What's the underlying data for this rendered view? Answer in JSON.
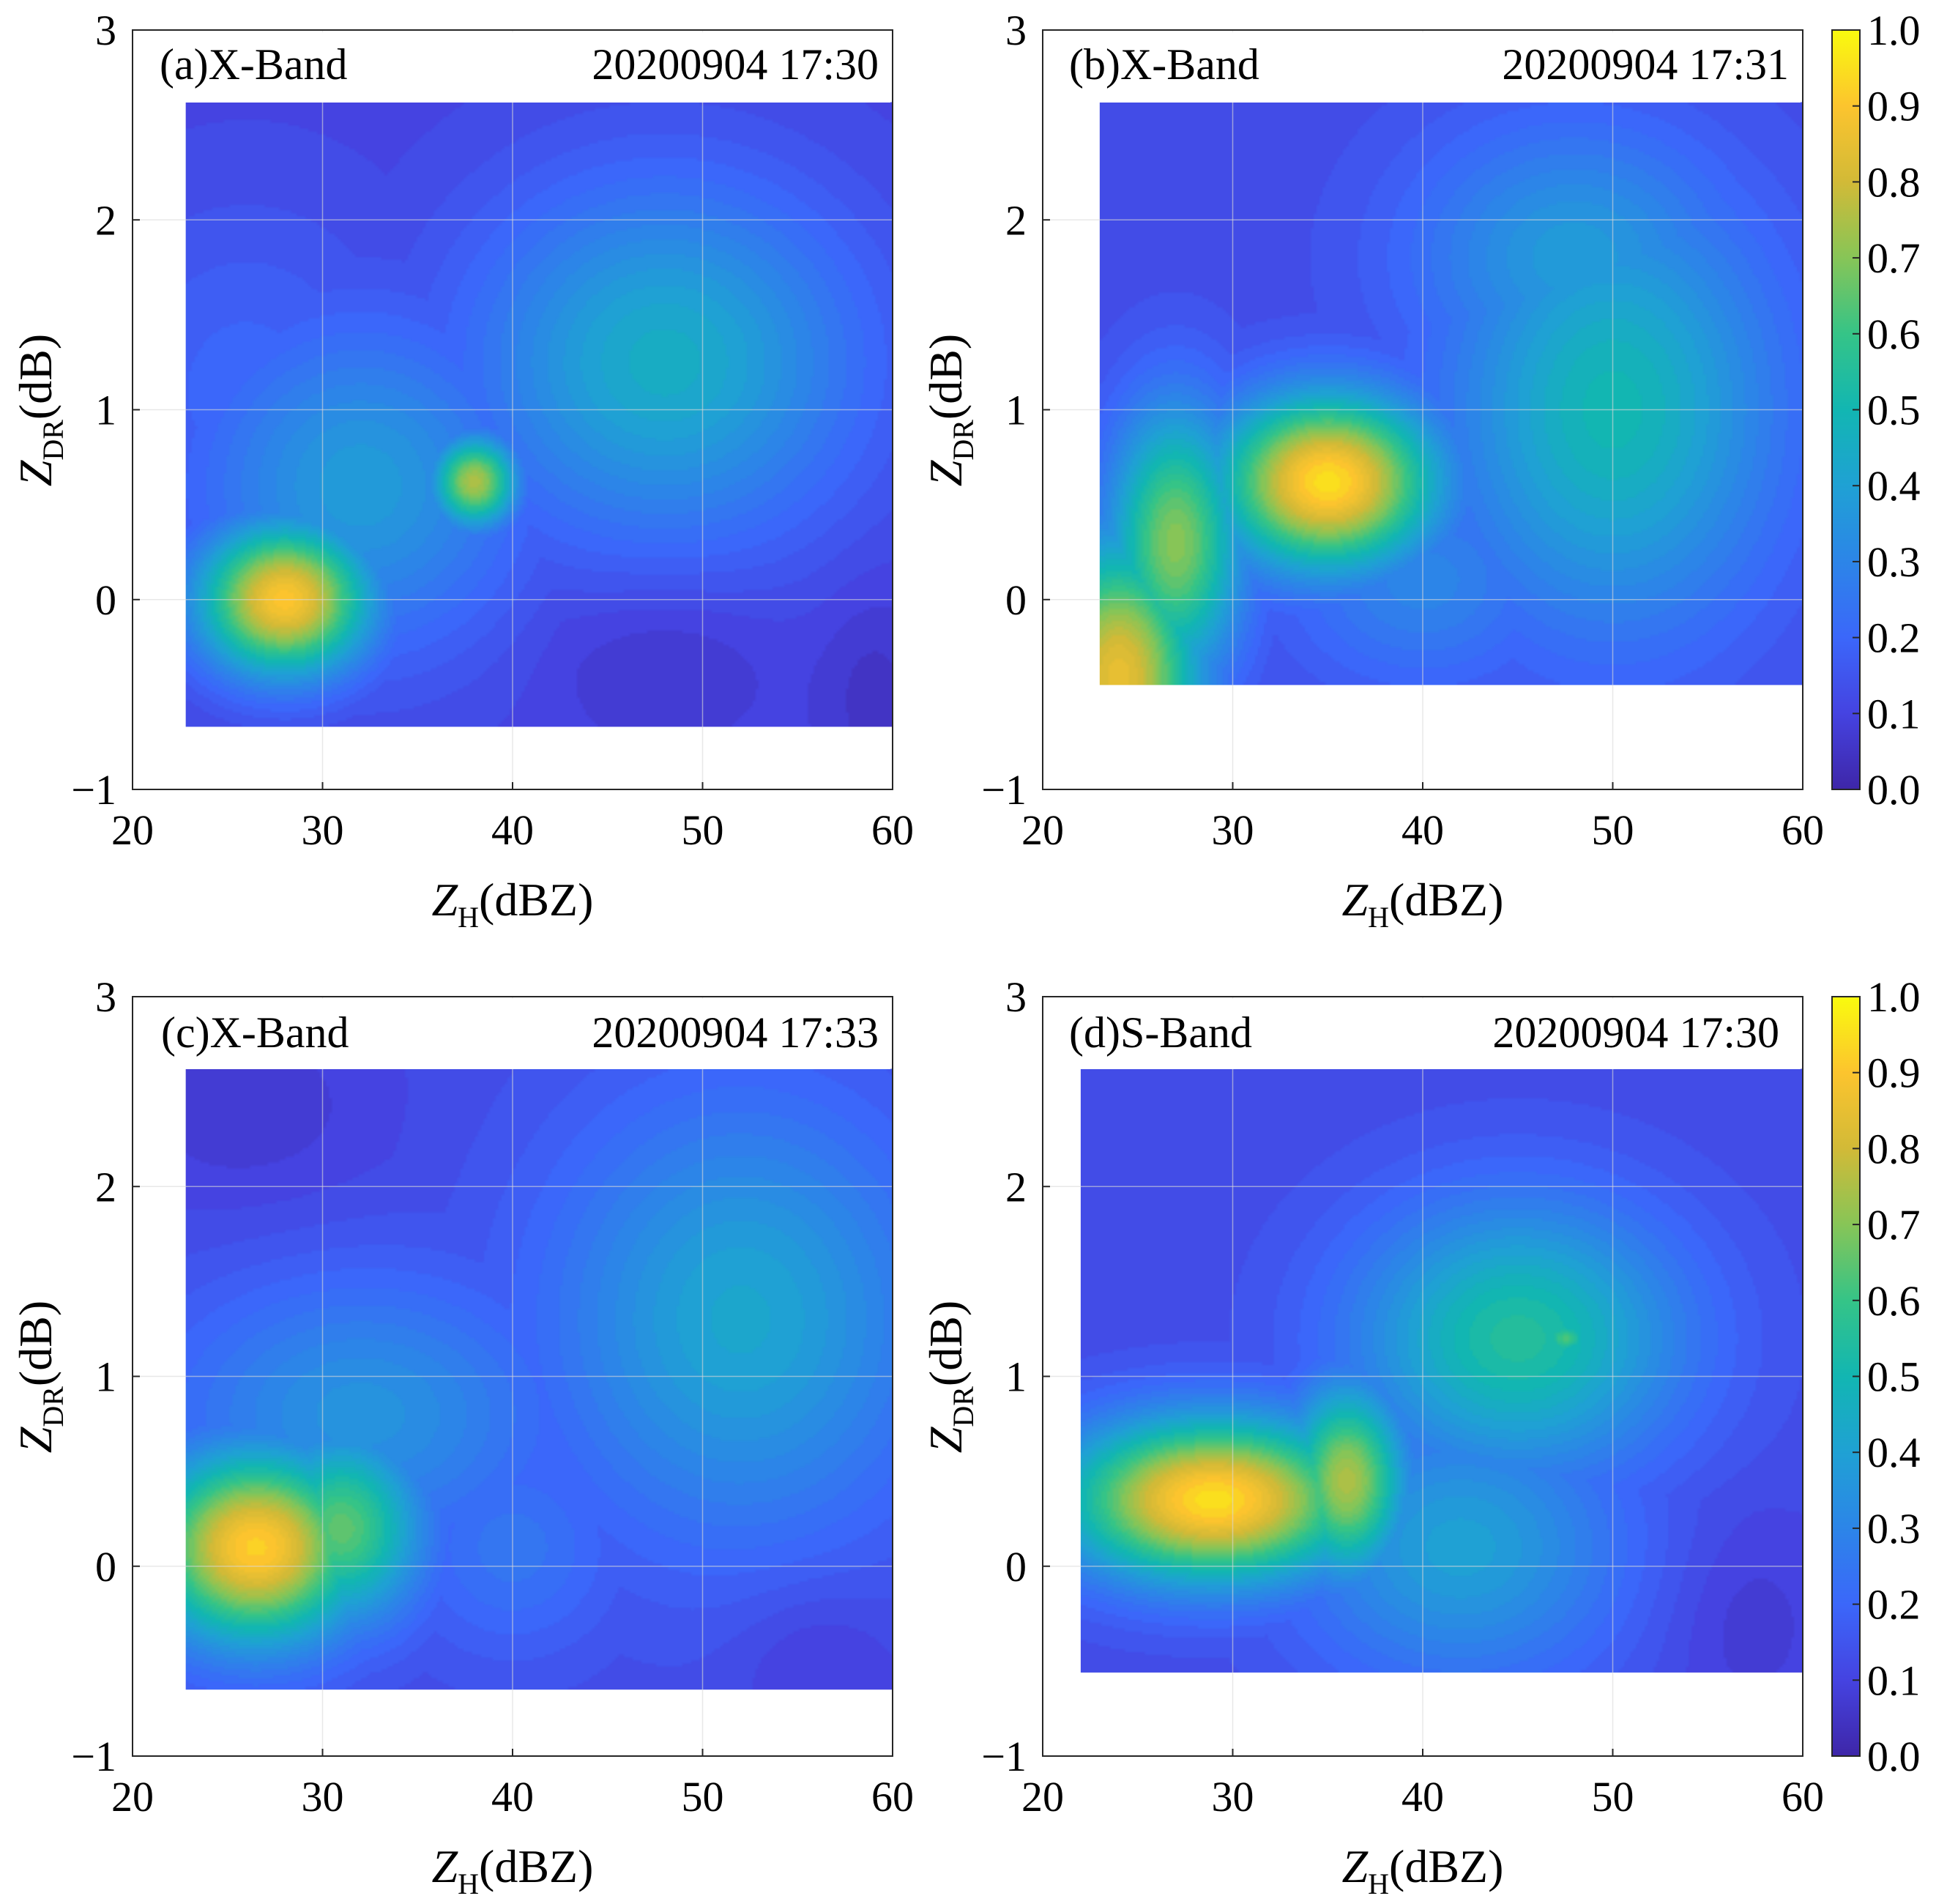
{
  "figure": {
    "colorbar_ticks": [
      "0.0",
      "0.1",
      "0.2",
      "0.3",
      "0.4",
      "0.5",
      "0.6",
      "0.7",
      "0.8",
      "0.9",
      "1.0"
    ]
  },
  "chart_data": [
    {
      "type": "heatmap",
      "panel_label": "(a)X-Band",
      "timestamp": "20200904 17:30",
      "xlabel_main": "Z",
      "xlabel_sub": "H",
      "xlabel_unit": "(dBZ)",
      "ylabel_main": "Z",
      "ylabel_sub": "DR",
      "ylabel_unit": "(dB)",
      "xlim": [
        20,
        60
      ],
      "ylim": [
        -1,
        3
      ],
      "xticks": [
        20,
        30,
        40,
        50,
        60
      ],
      "yticks": [
        -1,
        0,
        1,
        2,
        3
      ],
      "grid": true,
      "colormap": "parula",
      "clim": [
        0,
        1
      ],
      "data_extent": {
        "x": [
          22.8,
          60
        ],
        "y": [
          -0.67,
          2.62
        ]
      },
      "background": 0.1,
      "peaks": [
        {
          "x": 28,
          "y": 0.0,
          "value": 0.9,
          "sx": 3.2,
          "sy": 0.28
        },
        {
          "x": 38,
          "y": 0.62,
          "value": 0.75,
          "sx": 1.6,
          "sy": 0.17
        },
        {
          "x": 48,
          "y": 1.25,
          "value": 0.45,
          "sx": 7,
          "sy": 0.65
        },
        {
          "x": 32,
          "y": 0.6,
          "value": 0.38,
          "sx": 6,
          "sy": 0.6
        },
        {
          "x": 26,
          "y": 1.1,
          "value": 0.2,
          "sx": 6,
          "sy": 0.7
        },
        {
          "x": 48,
          "y": -0.3,
          "value": -0.05,
          "sx": 4,
          "sy": 0.3
        },
        {
          "x": 59,
          "y": -0.5,
          "value": -0.05,
          "sx": 2,
          "sy": 0.4
        }
      ]
    },
    {
      "type": "heatmap",
      "panel_label": "(b)X-Band",
      "timestamp": "20200904 17:31",
      "xlabel_main": "Z",
      "xlabel_sub": "H",
      "xlabel_unit": "(dBZ)",
      "ylabel_main": "Z",
      "ylabel_sub": "DR",
      "ylabel_unit": "(dB)",
      "xlim": [
        20,
        60
      ],
      "ylim": [
        -1,
        3
      ],
      "xticks": [
        20,
        30,
        40,
        50,
        60
      ],
      "yticks": [
        -1,
        0,
        1,
        2,
        3
      ],
      "grid": true,
      "colormap": "parula",
      "clim": [
        0,
        1
      ],
      "data_extent": {
        "x": [
          23,
          60
        ],
        "y": [
          -0.45,
          2.62
        ]
      },
      "background": 0.12,
      "peaks": [
        {
          "x": 35,
          "y": 0.62,
          "value": 0.95,
          "sx": 4,
          "sy": 0.32
        },
        {
          "x": 24,
          "y": -0.4,
          "value": 0.85,
          "sx": 3,
          "sy": 0.5
        },
        {
          "x": 27,
          "y": 0.3,
          "value": 0.7,
          "sx": 2.5,
          "sy": 0.5
        },
        {
          "x": 50,
          "y": 1.0,
          "value": 0.5,
          "sx": 6,
          "sy": 0.8
        },
        {
          "x": 48,
          "y": 1.8,
          "value": 0.38,
          "sx": 6,
          "sy": 0.5
        },
        {
          "x": 40,
          "y": 0.1,
          "value": 0.3,
          "sx": 5,
          "sy": 0.4
        },
        {
          "x": 48,
          "y": -0.2,
          "value": 0.08,
          "sx": 4,
          "sy": 0.2
        }
      ]
    },
    {
      "type": "heatmap",
      "panel_label": "(c)X-Band",
      "timestamp": "20200904 17:33",
      "xlabel_main": "Z",
      "xlabel_sub": "H",
      "xlabel_unit": "(dBZ)",
      "ylabel_main": "Z",
      "ylabel_sub": "DR",
      "ylabel_unit": "(dB)",
      "xlim": [
        20,
        60
      ],
      "ylim": [
        -1,
        3
      ],
      "xticks": [
        20,
        30,
        40,
        50,
        60
      ],
      "yticks": [
        -1,
        0,
        1,
        2,
        3
      ],
      "grid": true,
      "colormap": "parula",
      "clim": [
        0,
        1
      ],
      "data_extent": {
        "x": [
          22.8,
          60
        ],
        "y": [
          -0.65,
          2.62
        ]
      },
      "background": 0.12,
      "peaks": [
        {
          "x": 26.5,
          "y": 0.1,
          "value": 0.92,
          "sx": 4,
          "sy": 0.35
        },
        {
          "x": 31,
          "y": 0.2,
          "value": 0.65,
          "sx": 3,
          "sy": 0.35
        },
        {
          "x": 52,
          "y": 1.3,
          "value": 0.42,
          "sx": 7,
          "sy": 0.8
        },
        {
          "x": 32,
          "y": 0.8,
          "value": 0.35,
          "sx": 7,
          "sy": 0.5
        },
        {
          "x": 40,
          "y": 0.1,
          "value": 0.25,
          "sx": 4,
          "sy": 0.4
        },
        {
          "x": 26,
          "y": 2.4,
          "value": -0.05,
          "sx": 5,
          "sy": 0.4
        },
        {
          "x": 56,
          "y": -0.5,
          "value": -0.05,
          "sx": 3,
          "sy": 0.3
        }
      ]
    },
    {
      "type": "heatmap",
      "panel_label": "(d)S-Band",
      "timestamp": "20200904 17:30",
      "xlabel_main": "Z",
      "xlabel_sub": "H",
      "xlabel_unit": "(dBZ)",
      "ylabel_main": "Z",
      "ylabel_sub": "DR",
      "ylabel_unit": "(dB)",
      "xlim": [
        20,
        60
      ],
      "ylim": [
        -1,
        3
      ],
      "xticks": [
        20,
        30,
        40,
        50,
        60
      ],
      "yticks": [
        -1,
        0,
        1,
        2,
        3
      ],
      "grid": true,
      "colormap": "parula",
      "clim": [
        0,
        1
      ],
      "data_extent": {
        "x": [
          22,
          60
        ],
        "y": [
          -0.56,
          2.62
        ]
      },
      "background": 0.12,
      "peaks": [
        {
          "x": 29,
          "y": 0.35,
          "value": 0.95,
          "sx": 5.5,
          "sy": 0.3
        },
        {
          "x": 36,
          "y": 0.45,
          "value": 0.75,
          "sx": 2.2,
          "sy": 0.35
        },
        {
          "x": 45,
          "y": 1.2,
          "value": 0.55,
          "sx": 6,
          "sy": 0.5
        },
        {
          "x": 47.5,
          "y": 1.2,
          "value": 0.62,
          "sx": 1.0,
          "sy": 0.07
        },
        {
          "x": 42,
          "y": 0.1,
          "value": 0.4,
          "sx": 6,
          "sy": 0.5
        },
        {
          "x": 57,
          "y": -0.3,
          "value": -0.05,
          "sx": 3,
          "sy": 0.4
        }
      ]
    }
  ]
}
